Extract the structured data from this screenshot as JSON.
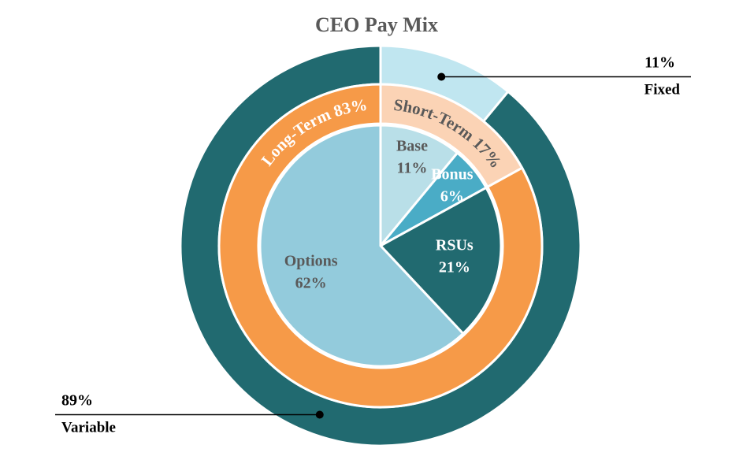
{
  "chart_data": {
    "type": "sunburst",
    "title": "CEO Pay Mix",
    "rings": [
      {
        "categories": [
          "Fixed",
          "Variable"
        ],
        "values": [
          11,
          89
        ],
        "value_labels": [
          "11%",
          "89%"
        ],
        "colors": [
          "#c0e6f0",
          "#216a70"
        ]
      },
      {
        "categories": [
          "Short-Term",
          "Long-Term"
        ],
        "values": [
          17,
          83
        ],
        "value_labels": [
          "17%",
          "83%"
        ],
        "colors": [
          "#fbd3b5",
          "#f69a48"
        ]
      },
      {
        "categories": [
          "Base",
          "Bonus",
          "RSUs",
          "Options"
        ],
        "values": [
          11,
          6,
          21,
          62
        ],
        "value_labels": [
          "11%",
          "6%",
          "21%",
          "62%"
        ],
        "colors": [
          "#b9dfe8",
          "#4aacc6",
          "#216a70",
          "#93cbdc"
        ]
      }
    ]
  }
}
